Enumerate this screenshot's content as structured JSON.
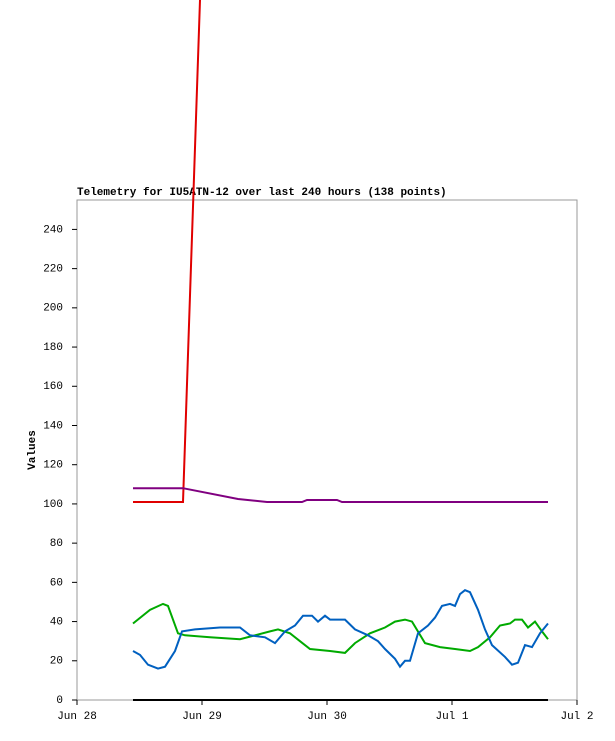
{
  "chart_data": {
    "type": "line",
    "title": "Telemetry for IU5ATN-12 over last 240 hours (138 points)",
    "y_label": "Values",
    "xlim": [
      0,
      4
    ],
    "xticks": [
      {
        "value": 0,
        "label": "Jun 28"
      },
      {
        "value": 1,
        "label": "Jun 29"
      },
      {
        "value": 2,
        "label": "Jun 30"
      },
      {
        "value": 3,
        "label": "Jul 1"
      },
      {
        "value": 4,
        "label": "Jul 2"
      }
    ],
    "ylim": [
      0,
      255
    ],
    "yticks": [
      0,
      20,
      40,
      60,
      80,
      100,
      120,
      140,
      160,
      180,
      200,
      220,
      240
    ],
    "series": [
      {
        "color": "#000000",
        "x": [
          0.448,
          3.768
        ],
        "values": [
          0,
          0
        ]
      },
      {
        "color": "#e00000",
        "x": [
          0.448,
          0.848,
          0.984
        ],
        "values": [
          101,
          101,
          357
        ]
      },
      {
        "color": "#800080",
        "x": [
          0.448,
          0.848,
          1.288,
          1.52,
          1.8,
          1.84,
          2.08,
          2.12,
          3.768
        ],
        "values": [
          108,
          108,
          102.5,
          101,
          101,
          102,
          102,
          101,
          101
        ]
      },
      {
        "color": "#00aa00",
        "x": [
          0.448,
          0.584,
          0.688,
          0.728,
          0.808,
          0.864,
          1.064,
          1.304,
          1.424,
          1.544,
          1.608,
          1.704,
          1.784,
          1.864,
          2.024,
          2.144,
          2.224,
          2.344,
          2.464,
          2.544,
          2.624,
          2.68,
          2.784,
          2.904,
          3.024,
          3.144,
          3.208,
          3.304,
          3.384,
          3.464,
          3.504,
          3.56,
          3.608,
          3.664,
          3.72,
          3.768
        ],
        "values": [
          39,
          46,
          49,
          48,
          34,
          33,
          32,
          31,
          33,
          35,
          36,
          34,
          30,
          26,
          25,
          24,
          29,
          34,
          37,
          40,
          41,
          40,
          29,
          27,
          26,
          25,
          27,
          32,
          38,
          39,
          41,
          41,
          37,
          40,
          35,
          31
        ]
      },
      {
        "color": "#0060c0",
        "x": [
          0.448,
          0.504,
          0.568,
          0.648,
          0.704,
          0.784,
          0.84,
          0.944,
          1.144,
          1.304,
          1.384,
          1.504,
          1.584,
          1.664,
          1.744,
          1.808,
          1.88,
          1.928,
          1.984,
          2.024,
          2.144,
          2.224,
          2.328,
          2.408,
          2.464,
          2.544,
          2.584,
          2.624,
          2.664,
          2.728,
          2.808,
          2.864,
          2.92,
          2.984,
          3.024,
          3.064,
          3.104,
          3.144,
          3.208,
          3.264,
          3.32,
          3.424,
          3.48,
          3.528,
          3.584,
          3.64,
          3.704,
          3.768
        ],
        "values": [
          25,
          23,
          18,
          16,
          17,
          25,
          35,
          36,
          37,
          37,
          33,
          32,
          29,
          35,
          38,
          43,
          43,
          40,
          43,
          41,
          41,
          36,
          33,
          30,
          26,
          21,
          17,
          20,
          20,
          34,
          38,
          42,
          48,
          49,
          48,
          54,
          56,
          55,
          46,
          36,
          28,
          22,
          18,
          19,
          28,
          27,
          34,
          39
        ]
      }
    ]
  }
}
